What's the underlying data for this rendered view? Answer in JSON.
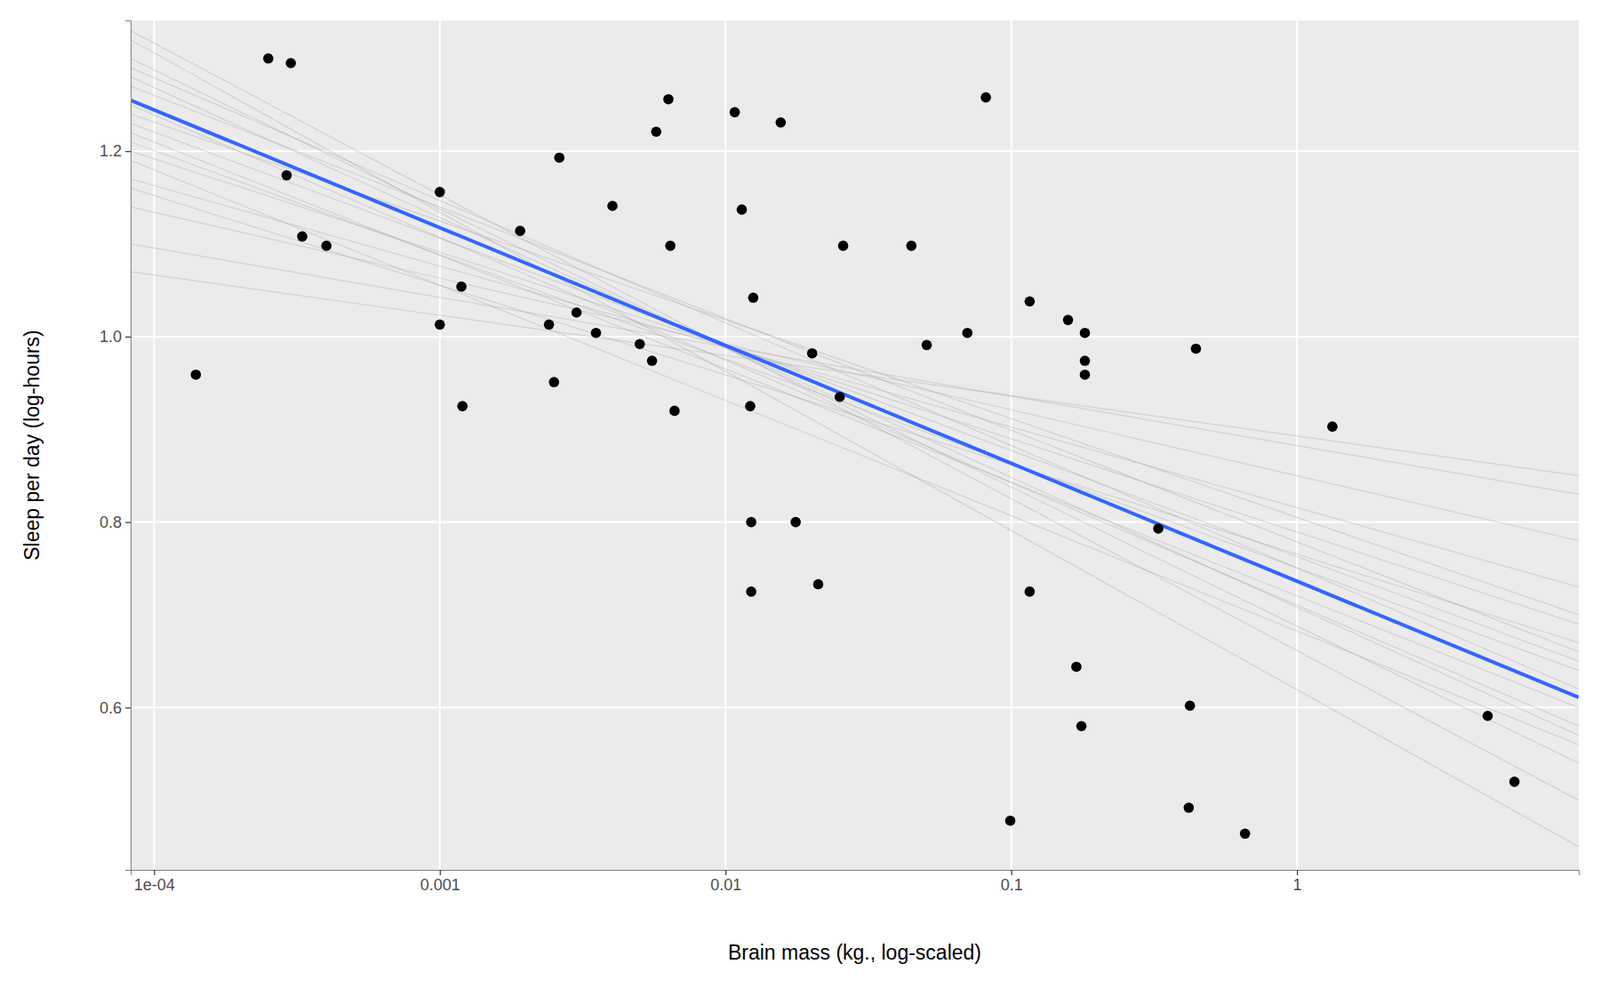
{
  "chart_data": {
    "type": "scatter",
    "x_label": "Brain mass (kg., log-scaled)",
    "y_label": "Sleep per day (log-hours)",
    "log": "x",
    "grid": true,
    "xlim": [
      8.28e-05,
      9.68
    ],
    "ylim": [
      0.425,
      1.341
    ],
    "xticks": [
      {
        "value": 0.0001,
        "label": "1e-04"
      },
      0.001,
      0.01,
      0.1,
      1
    ],
    "yticks": [
      {
        "value": 0.6,
        "label": "0.6"
      },
      {
        "value": 0.8,
        "label": "0.8"
      },
      {
        "value": 1.0,
        "label": "1.0"
      },
      {
        "value": 1.2,
        "label": "1.2"
      }
    ],
    "series": [
      {
        "type": "line",
        "line_style": "faint",
        "color": "#999999",
        "x": [
          8.28e-05,
          9.68
        ],
        "values": [
          1.33,
          0.5
        ]
      },
      {
        "type": "line",
        "line_style": "faint",
        "color": "#999999",
        "x": [
          8.28e-05,
          9.68
        ],
        "values": [
          1.3,
          0.54
        ]
      },
      {
        "type": "line",
        "line_style": "faint",
        "color": "#999999",
        "x": [
          8.28e-05,
          9.68
        ],
        "values": [
          1.28,
          0.57
        ]
      },
      {
        "type": "line",
        "line_style": "faint",
        "color": "#999999",
        "x": [
          8.28e-05,
          9.68
        ],
        "values": [
          1.23,
          0.65
        ]
      },
      {
        "type": "line",
        "line_style": "faint",
        "color": "#999999",
        "x": [
          8.28e-05,
          9.68
        ],
        "values": [
          1.2,
          0.69
        ]
      },
      {
        "type": "line",
        "line_style": "faint",
        "color": "#999999",
        "x": [
          8.28e-05,
          9.68
        ],
        "values": [
          1.17,
          0.73
        ]
      },
      {
        "type": "line",
        "line_style": "faint",
        "color": "#999999",
        "x": [
          8.28e-05,
          9.68
        ],
        "values": [
          1.14,
          0.78
        ]
      },
      {
        "type": "line",
        "line_style": "faint",
        "color": "#999999",
        "x": [
          8.28e-05,
          9.68
        ],
        "values": [
          1.1,
          0.83
        ]
      },
      {
        "type": "line",
        "line_style": "faint",
        "color": "#999999",
        "x": [
          8.28e-05,
          9.68
        ],
        "values": [
          1.07,
          0.85
        ]
      },
      {
        "type": "line",
        "line_style": "faint",
        "color": "#999999",
        "x": [
          8.28e-05,
          9.68
        ],
        "values": [
          1.32,
          0.45
        ]
      },
      {
        "type": "line",
        "line_style": "faint",
        "color": "#999999",
        "x": [
          8.28e-05,
          9.68
        ],
        "values": [
          1.22,
          0.6
        ]
      },
      {
        "type": "line",
        "line_style": "faint",
        "color": "#999999",
        "x": [
          8.28e-05,
          9.68
        ],
        "values": [
          1.27,
          0.66
        ]
      },
      {
        "type": "line",
        "line_style": "faint",
        "color": "#999999",
        "x": [
          8.28e-05,
          9.68
        ],
        "values": [
          1.19,
          0.56
        ]
      },
      {
        "type": "line",
        "line_style": "faint",
        "color": "#999999",
        "x": [
          8.28e-05,
          9.68
        ],
        "values": [
          1.24,
          0.7
        ]
      },
      {
        "type": "line",
        "line_style": "faint",
        "color": "#999999",
        "x": [
          8.28e-05,
          9.68
        ],
        "values": [
          1.29,
          0.62
        ]
      },
      {
        "type": "line",
        "line_style": "faint",
        "color": "#999999",
        "x": [
          8.28e-05,
          9.68
        ],
        "values": [
          1.16,
          0.67
        ]
      },
      {
        "type": "line",
        "line_style": "faint",
        "color": "#999999",
        "x": [
          8.28e-05,
          9.68
        ],
        "values": [
          1.25,
          0.58
        ]
      },
      {
        "type": "line",
        "line_style": "faint",
        "color": "#999999",
        "x": [
          8.28e-05,
          9.68
        ],
        "values": [
          1.21,
          0.64
        ]
      },
      {
        "type": "line",
        "line_style": "solid",
        "color": "#3366ff",
        "x": [
          8.28e-05,
          9.68
        ],
        "values": [
          1.255,
          0.611
        ]
      },
      {
        "type": "scatter",
        "marker": "circle",
        "color": "#000000",
        "x": [
          0.00014,
          0.000251,
          0.000301,
          0.000291,
          0.00033,
          0.000401,
          0.001,
          0.001,
          0.00119,
          0.0012,
          0.00191,
          0.00241,
          0.00262,
          0.00251,
          0.00301,
          0.00352,
          0.00402,
          0.00501,
          0.00553,
          0.00572,
          0.00631,
          0.00641,
          0.00663,
          0.01077,
          0.0114,
          0.0122,
          0.0125,
          0.0123,
          0.0123,
          0.0156,
          0.0176,
          0.0201,
          0.0211,
          0.0251,
          0.0258,
          0.0447,
          0.0506,
          0.0702,
          0.0815,
          0.0992,
          0.116,
          0.116,
          0.158,
          0.181,
          0.181,
          0.181,
          0.169,
          0.176,
          0.327,
          0.422,
          0.418,
          0.443,
          0.658,
          1.33,
          4.65,
          5.77
        ],
        "values": [
          0.959,
          1.3,
          1.295,
          1.174,
          1.108,
          1.098,
          1.156,
          1.013,
          1.054,
          0.925,
          1.114,
          1.013,
          1.193,
          0.951,
          1.026,
          1.004,
          1.141,
          0.992,
          0.974,
          1.221,
          1.256,
          1.098,
          0.92,
          1.242,
          1.137,
          0.925,
          1.042,
          0.8,
          0.725,
          1.231,
          0.8,
          0.982,
          0.733,
          0.935,
          1.098,
          1.098,
          0.991,
          1.004,
          1.258,
          0.478,
          1.038,
          0.725,
          1.018,
          1.004,
          0.974,
          0.959,
          0.644,
          0.58,
          0.793,
          0.602,
          0.492,
          0.987,
          0.464,
          0.903,
          0.591,
          0.52
        ]
      }
    ]
  }
}
